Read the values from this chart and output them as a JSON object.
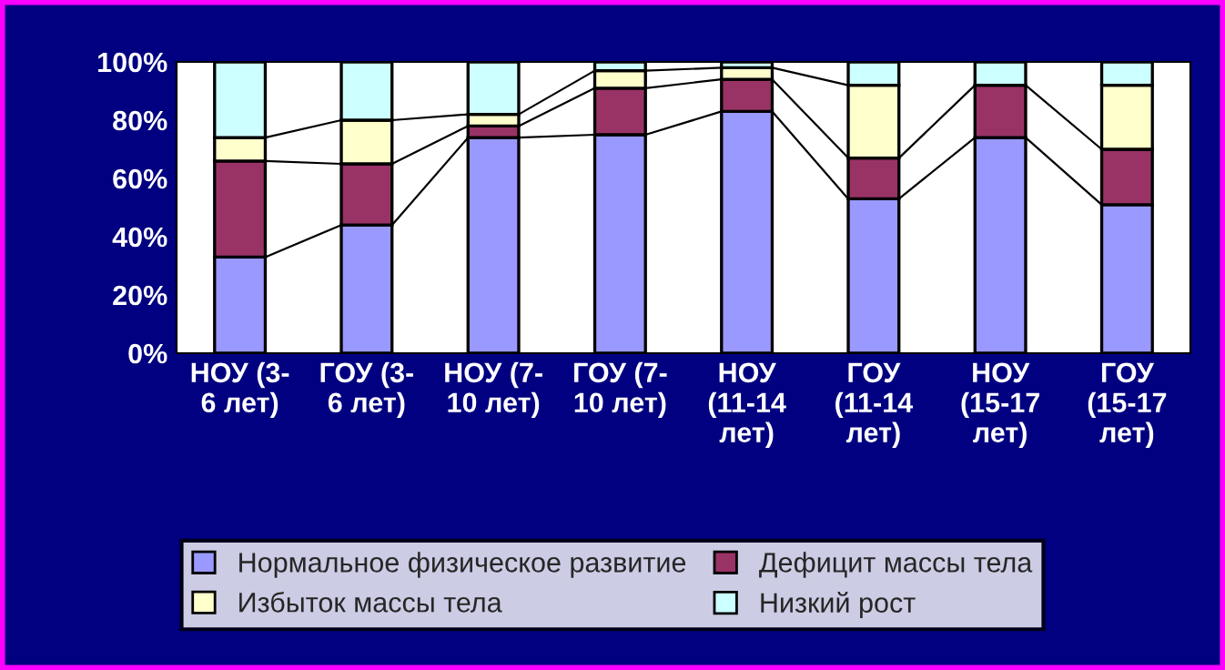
{
  "chart_data": {
    "type": "bar",
    "stacked": true,
    "categories": [
      "НОУ (3-\n6 лет)",
      "ГОУ (3-\n6 лет)",
      "НОУ (7-\n10 лет)",
      "ГОУ (7-\n10 лет)",
      "НОУ\n(11-14\nлет)",
      "ГОУ\n(11-14\nлет)",
      "НОУ\n(15-17\nлет)",
      "ГОУ\n(15-17\nлет)"
    ],
    "series": [
      {
        "name": "Нормальное физическое развитие",
        "color": "#9999ff",
        "values": [
          33,
          44,
          74,
          75,
          83,
          53,
          74,
          51
        ]
      },
      {
        "name": "Дефицит массы тела",
        "color": "#993366",
        "values": [
          33,
          21,
          4,
          16,
          11,
          14,
          18,
          19
        ]
      },
      {
        "name": "Избыток массы тела",
        "color": "#ffffcc",
        "values": [
          8,
          15,
          4,
          6,
          4,
          25,
          null,
          22
        ]
      },
      {
        "name": "Низкий рост",
        "color": "#ccffff",
        "values": [
          26,
          20,
          18,
          3,
          2,
          8,
          8,
          8
        ]
      }
    ],
    "ylim": [
      0,
      100
    ],
    "yticks": [
      {
        "value": 0,
        "label": "0%"
      },
      {
        "value": 20,
        "label": "20%"
      },
      {
        "value": 40,
        "label": "40%"
      },
      {
        "value": 60,
        "label": "60%"
      },
      {
        "value": 80,
        "label": "80%"
      },
      {
        "value": 100,
        "label": "100%"
      }
    ],
    "grid": false,
    "legend": "bottom"
  }
}
